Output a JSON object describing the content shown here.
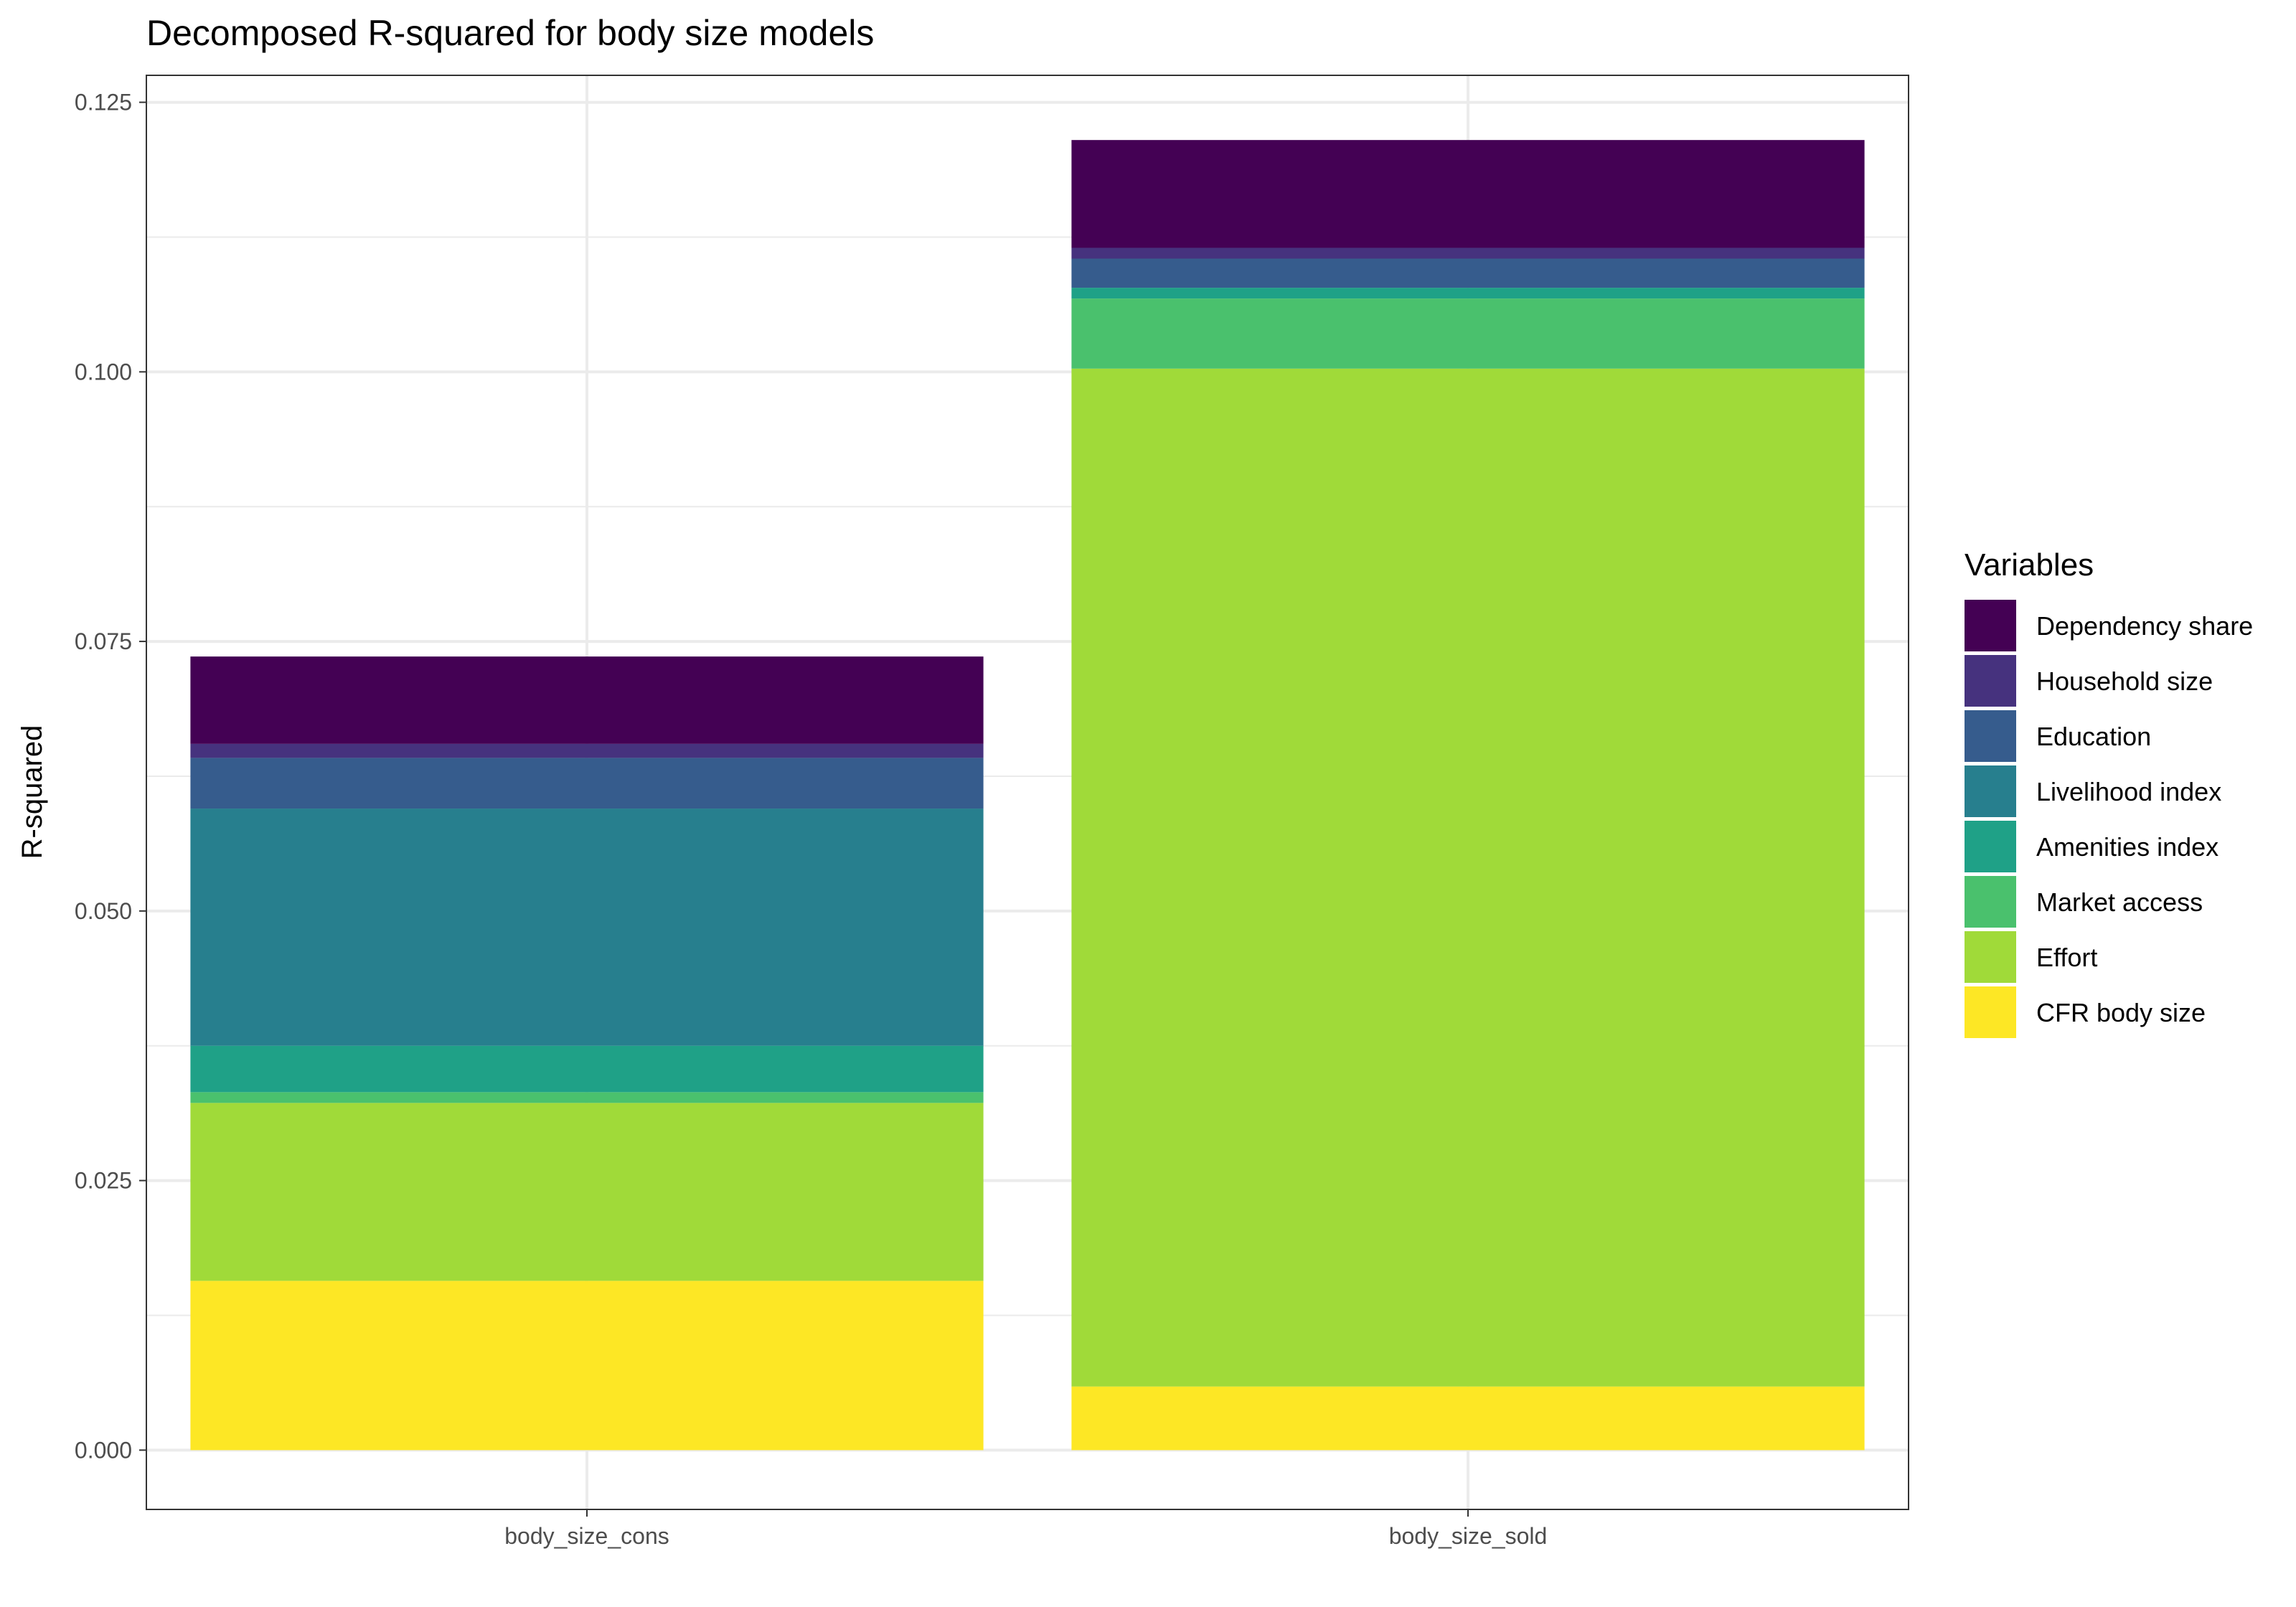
{
  "chart_data": {
    "type": "bar",
    "stacked": true,
    "title": "Decomposed R-squared for body size models",
    "xlabel": "",
    "ylabel": "R-squared",
    "categories": [
      "body_size_cons",
      "body_size_sold"
    ],
    "ylim": [
      -0.0055,
      0.1275
    ],
    "yticks": [
      0.0,
      0.025,
      0.05,
      0.075,
      0.1,
      0.125
    ],
    "ytick_labels": [
      "0.000",
      "0.025",
      "0.050",
      "0.075",
      "0.100",
      "0.125"
    ],
    "grid": true,
    "legend": {
      "title": "Variables",
      "position": "right"
    },
    "series": [
      {
        "name": "CFR body size",
        "color": "#FDE725",
        "values": [
          0.0157,
          0.0059
        ]
      },
      {
        "name": "Effort",
        "color": "#A0DA39",
        "values": [
          0.0165,
          0.0944
        ]
      },
      {
        "name": "Market access",
        "color": "#4AC16D",
        "values": [
          0.001,
          0.0065
        ]
      },
      {
        "name": "Amenities index",
        "color": "#1FA187",
        "values": [
          0.0043,
          0.001
        ]
      },
      {
        "name": "Livelihood index",
        "color": "#277F8E",
        "values": [
          0.022,
          0.0
        ]
      },
      {
        "name": "Education",
        "color": "#365C8D",
        "values": [
          0.0047,
          0.0027
        ]
      },
      {
        "name": "Household size",
        "color": "#46327E",
        "values": [
          0.0013,
          0.001
        ]
      },
      {
        "name": "Dependency share",
        "color": "#440154",
        "values": [
          0.0081,
          0.01
        ]
      }
    ]
  }
}
